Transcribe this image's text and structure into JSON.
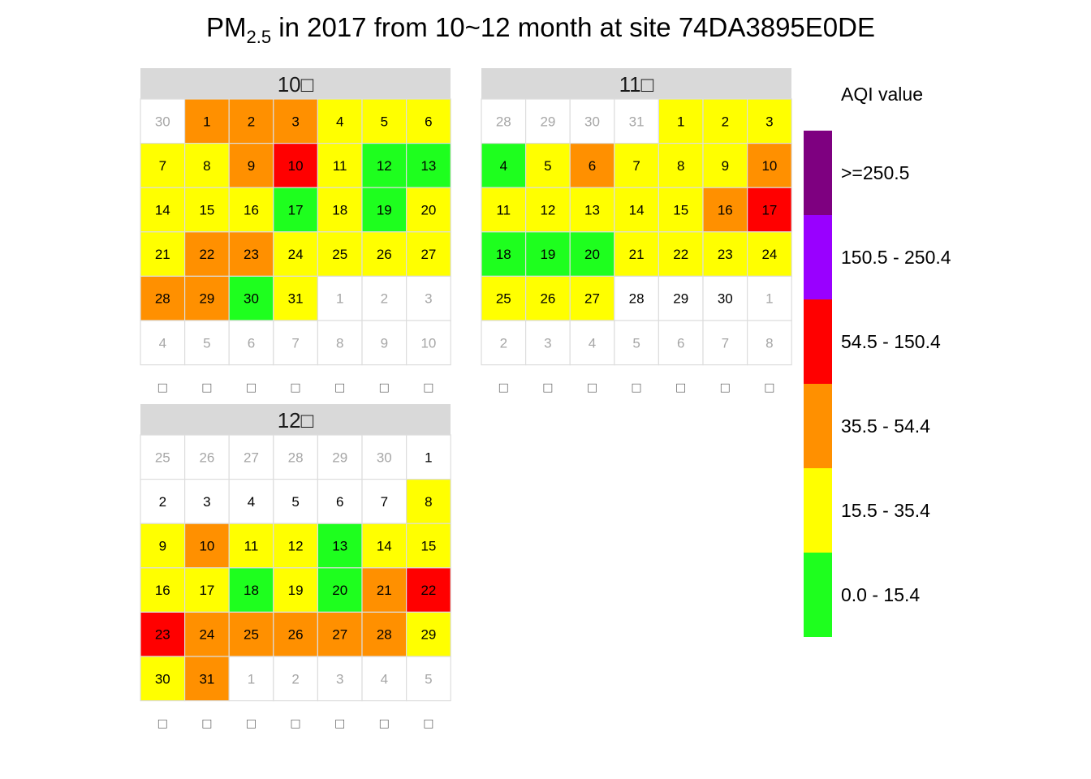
{
  "title": {
    "main": "PM",
    "sub": "2.5",
    "rest": " in 2017 from 10~12 month at site 74DA3895E0DE"
  },
  "chart_data": {
    "type": "heatmap",
    "subtype": "calendar",
    "year": 2017,
    "legend": {
      "title": "AQI value",
      "position": "right",
      "levels": [
        {
          "label": ">=250.5",
          "color": "#7E0080"
        },
        {
          "label": "150.5 - 250.4",
          "color": "#9900FF"
        },
        {
          "label": "54.5 - 150.4",
          "color": "#FF0000"
        },
        {
          "label": "35.5 - 54.4",
          "color": "#FF9000"
        },
        {
          "label": "15.5 - 35.4",
          "color": "#FFFF00"
        },
        {
          "label": "0.0 - 15.4",
          "color": "#1EFF1E"
        }
      ]
    },
    "months": [
      {
        "title": "10□",
        "cells": [
          {
            "d": "30",
            "c": "o"
          },
          {
            "d": "1",
            "c": "35.5 - 54.4"
          },
          {
            "d": "2",
            "c": "35.5 - 54.4"
          },
          {
            "d": "3",
            "c": "35.5 - 54.4"
          },
          {
            "d": "4",
            "c": "15.5 - 35.4"
          },
          {
            "d": "5",
            "c": "15.5 - 35.4"
          },
          {
            "d": "6",
            "c": "15.5 - 35.4"
          },
          {
            "d": "7",
            "c": "15.5 - 35.4"
          },
          {
            "d": "8",
            "c": "15.5 - 35.4"
          },
          {
            "d": "9",
            "c": "35.5 - 54.4"
          },
          {
            "d": "10",
            "c": "54.5 - 150.4"
          },
          {
            "d": "11",
            "c": "15.5 - 35.4"
          },
          {
            "d": "12",
            "c": "0.0 - 15.4"
          },
          {
            "d": "13",
            "c": "0.0 - 15.4"
          },
          {
            "d": "14",
            "c": "15.5 - 35.4"
          },
          {
            "d": "15",
            "c": "15.5 - 35.4"
          },
          {
            "d": "16",
            "c": "15.5 - 35.4"
          },
          {
            "d": "17",
            "c": "0.0 - 15.4"
          },
          {
            "d": "18",
            "c": "15.5 - 35.4"
          },
          {
            "d": "19",
            "c": "0.0 - 15.4"
          },
          {
            "d": "20",
            "c": "15.5 - 35.4"
          },
          {
            "d": "21",
            "c": "15.5 - 35.4"
          },
          {
            "d": "22",
            "c": "35.5 - 54.4"
          },
          {
            "d": "23",
            "c": "35.5 - 54.4"
          },
          {
            "d": "24",
            "c": "15.5 - 35.4"
          },
          {
            "d": "25",
            "c": "15.5 - 35.4"
          },
          {
            "d": "26",
            "c": "15.5 - 35.4"
          },
          {
            "d": "27",
            "c": "15.5 - 35.4"
          },
          {
            "d": "28",
            "c": "35.5 - 54.4"
          },
          {
            "d": "29",
            "c": "35.5 - 54.4"
          },
          {
            "d": "30",
            "c": "0.0 - 15.4"
          },
          {
            "d": "31",
            "c": "15.5 - 35.4"
          },
          {
            "d": "1",
            "c": "o"
          },
          {
            "d": "2",
            "c": "o"
          },
          {
            "d": "3",
            "c": "o"
          },
          {
            "d": "4",
            "c": "o"
          },
          {
            "d": "5",
            "c": "o"
          },
          {
            "d": "6",
            "c": "o"
          },
          {
            "d": "7",
            "c": "o"
          },
          {
            "d": "8",
            "c": "o"
          },
          {
            "d": "9",
            "c": "o"
          },
          {
            "d": "10",
            "c": "o"
          }
        ]
      },
      {
        "title": "11□",
        "cells": [
          {
            "d": "28",
            "c": "o"
          },
          {
            "d": "29",
            "c": "o"
          },
          {
            "d": "30",
            "c": "o"
          },
          {
            "d": "31",
            "c": "o"
          },
          {
            "d": "1",
            "c": "15.5 - 35.4"
          },
          {
            "d": "2",
            "c": "15.5 - 35.4"
          },
          {
            "d": "3",
            "c": "15.5 - 35.4"
          },
          {
            "d": "4",
            "c": "0.0 - 15.4"
          },
          {
            "d": "5",
            "c": "15.5 - 35.4"
          },
          {
            "d": "6",
            "c": "35.5 - 54.4"
          },
          {
            "d": "7",
            "c": "15.5 - 35.4"
          },
          {
            "d": "8",
            "c": "15.5 - 35.4"
          },
          {
            "d": "9",
            "c": "15.5 - 35.4"
          },
          {
            "d": "10",
            "c": "35.5 - 54.4"
          },
          {
            "d": "11",
            "c": "15.5 - 35.4"
          },
          {
            "d": "12",
            "c": "15.5 - 35.4"
          },
          {
            "d": "13",
            "c": "15.5 - 35.4"
          },
          {
            "d": "14",
            "c": "15.5 - 35.4"
          },
          {
            "d": "15",
            "c": "15.5 - 35.4"
          },
          {
            "d": "16",
            "c": "35.5 - 54.4"
          },
          {
            "d": "17",
            "c": "54.5 - 150.4"
          },
          {
            "d": "18",
            "c": "0.0 - 15.4"
          },
          {
            "d": "19",
            "c": "0.0 - 15.4"
          },
          {
            "d": "20",
            "c": "0.0 - 15.4"
          },
          {
            "d": "21",
            "c": "15.5 - 35.4"
          },
          {
            "d": "22",
            "c": "15.5 - 35.4"
          },
          {
            "d": "23",
            "c": "15.5 - 35.4"
          },
          {
            "d": "24",
            "c": "15.5 - 35.4"
          },
          {
            "d": "25",
            "c": "15.5 - 35.4"
          },
          {
            "d": "26",
            "c": "15.5 - 35.4"
          },
          {
            "d": "27",
            "c": "15.5 - 35.4"
          },
          {
            "d": "28",
            "c": "none"
          },
          {
            "d": "29",
            "c": "none"
          },
          {
            "d": "30",
            "c": "none"
          },
          {
            "d": "1",
            "c": "o"
          },
          {
            "d": "2",
            "c": "o"
          },
          {
            "d": "3",
            "c": "o"
          },
          {
            "d": "4",
            "c": "o"
          },
          {
            "d": "5",
            "c": "o"
          },
          {
            "d": "6",
            "c": "o"
          },
          {
            "d": "7",
            "c": "o"
          },
          {
            "d": "8",
            "c": "o"
          }
        ]
      },
      {
        "title": "12□",
        "cells": [
          {
            "d": "25",
            "c": "o"
          },
          {
            "d": "26",
            "c": "o"
          },
          {
            "d": "27",
            "c": "o"
          },
          {
            "d": "28",
            "c": "o"
          },
          {
            "d": "29",
            "c": "o"
          },
          {
            "d": "30",
            "c": "o"
          },
          {
            "d": "1",
            "c": "none"
          },
          {
            "d": "2",
            "c": "none"
          },
          {
            "d": "3",
            "c": "none"
          },
          {
            "d": "4",
            "c": "none"
          },
          {
            "d": "5",
            "c": "none"
          },
          {
            "d": "6",
            "c": "none"
          },
          {
            "d": "7",
            "c": "none"
          },
          {
            "d": "8",
            "c": "15.5 - 35.4"
          },
          {
            "d": "9",
            "c": "15.5 - 35.4"
          },
          {
            "d": "10",
            "c": "35.5 - 54.4"
          },
          {
            "d": "11",
            "c": "15.5 - 35.4"
          },
          {
            "d": "12",
            "c": "15.5 - 35.4"
          },
          {
            "d": "13",
            "c": "0.0 - 15.4"
          },
          {
            "d": "14",
            "c": "15.5 - 35.4"
          },
          {
            "d": "15",
            "c": "15.5 - 35.4"
          },
          {
            "d": "16",
            "c": "15.5 - 35.4"
          },
          {
            "d": "17",
            "c": "15.5 - 35.4"
          },
          {
            "d": "18",
            "c": "0.0 - 15.4"
          },
          {
            "d": "19",
            "c": "15.5 - 35.4"
          },
          {
            "d": "20",
            "c": "0.0 - 15.4"
          },
          {
            "d": "21",
            "c": "35.5 - 54.4"
          },
          {
            "d": "22",
            "c": "54.5 - 150.4"
          },
          {
            "d": "23",
            "c": "54.5 - 150.4"
          },
          {
            "d": "24",
            "c": "35.5 - 54.4"
          },
          {
            "d": "25",
            "c": "35.5 - 54.4"
          },
          {
            "d": "26",
            "c": "35.5 - 54.4"
          },
          {
            "d": "27",
            "c": "35.5 - 54.4"
          },
          {
            "d": "28",
            "c": "35.5 - 54.4"
          },
          {
            "d": "29",
            "c": "15.5 - 35.4"
          },
          {
            "d": "30",
            "c": "15.5 - 35.4"
          },
          {
            "d": "31",
            "c": "35.5 - 54.4"
          },
          {
            "d": "1",
            "c": "o"
          },
          {
            "d": "2",
            "c": "o"
          },
          {
            "d": "3",
            "c": "o"
          },
          {
            "d": "4",
            "c": "o"
          },
          {
            "d": "5",
            "c": "o"
          }
        ]
      }
    ],
    "weekday_labels": [
      "□",
      "□",
      "□",
      "□",
      "□",
      "□",
      "□"
    ]
  }
}
